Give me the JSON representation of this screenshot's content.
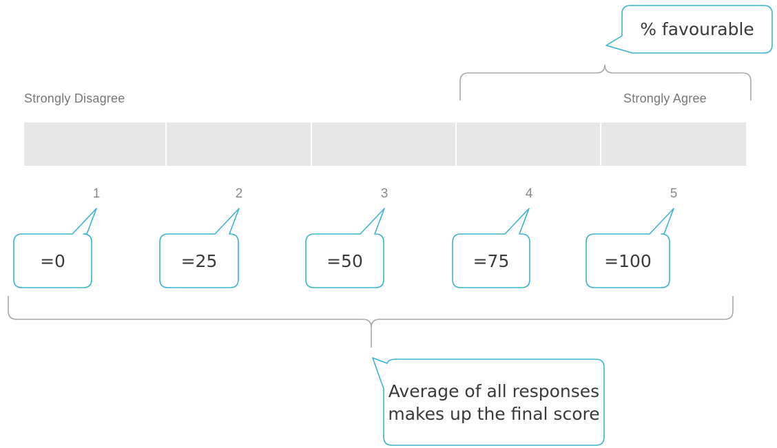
{
  "scale": {
    "left_label": "Strongly Disagree",
    "right_label": "Strongly Agree",
    "points": [
      "1",
      "2",
      "3",
      "4",
      "5"
    ],
    "values": [
      "=0",
      "=25",
      "=50",
      "=75",
      "=100"
    ]
  },
  "callouts": {
    "favourable": "% favourable",
    "average": "Average of all responses makes up the final score"
  },
  "colors": {
    "accent": "#3ab3cc",
    "bar": "#e7e7e7",
    "bracket": "#a8a8a8"
  }
}
